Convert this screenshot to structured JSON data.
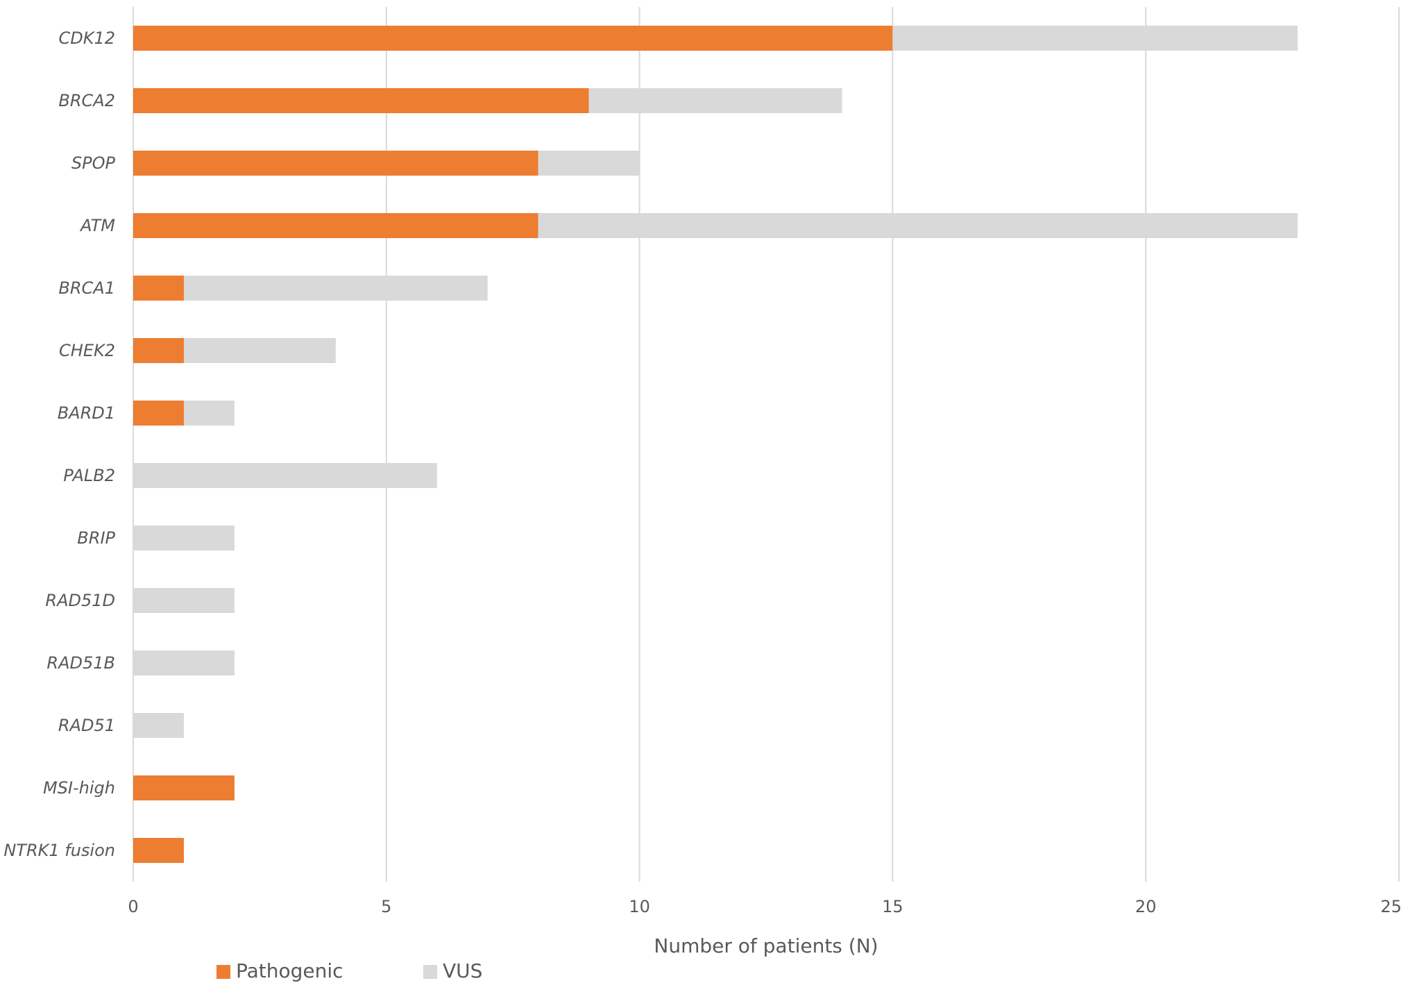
{
  "chart_data": {
    "type": "bar",
    "orientation": "horizontal",
    "stacked": true,
    "categories": [
      "CDK12",
      "BRCA2",
      "SPOP",
      "ATM",
      "BRCA1",
      "CHEK2",
      "BARD1",
      "PALB2",
      "BRIP",
      "RAD51D",
      "RAD51B",
      "RAD51",
      "MSI-high",
      "NTRK1 fusion"
    ],
    "series": [
      {
        "name": "Pathogenic",
        "color": "#ed7d31",
        "values": [
          15,
          9,
          8,
          8,
          1,
          1,
          1,
          0,
          0,
          0,
          0,
          0,
          2,
          1
        ]
      },
      {
        "name": "VUS",
        "color": "#d9d9d9",
        "values": [
          8,
          5,
          2,
          15,
          6,
          3,
          1,
          6,
          2,
          2,
          2,
          1,
          0,
          0
        ]
      }
    ],
    "xlabel": "Number of patients (N)",
    "ylabel": "",
    "xlim": [
      0,
      25
    ],
    "xticks": [
      "0",
      "5",
      "10",
      "15",
      "20",
      "25"
    ],
    "grid": "vertical",
    "legend": "bottom-left"
  }
}
